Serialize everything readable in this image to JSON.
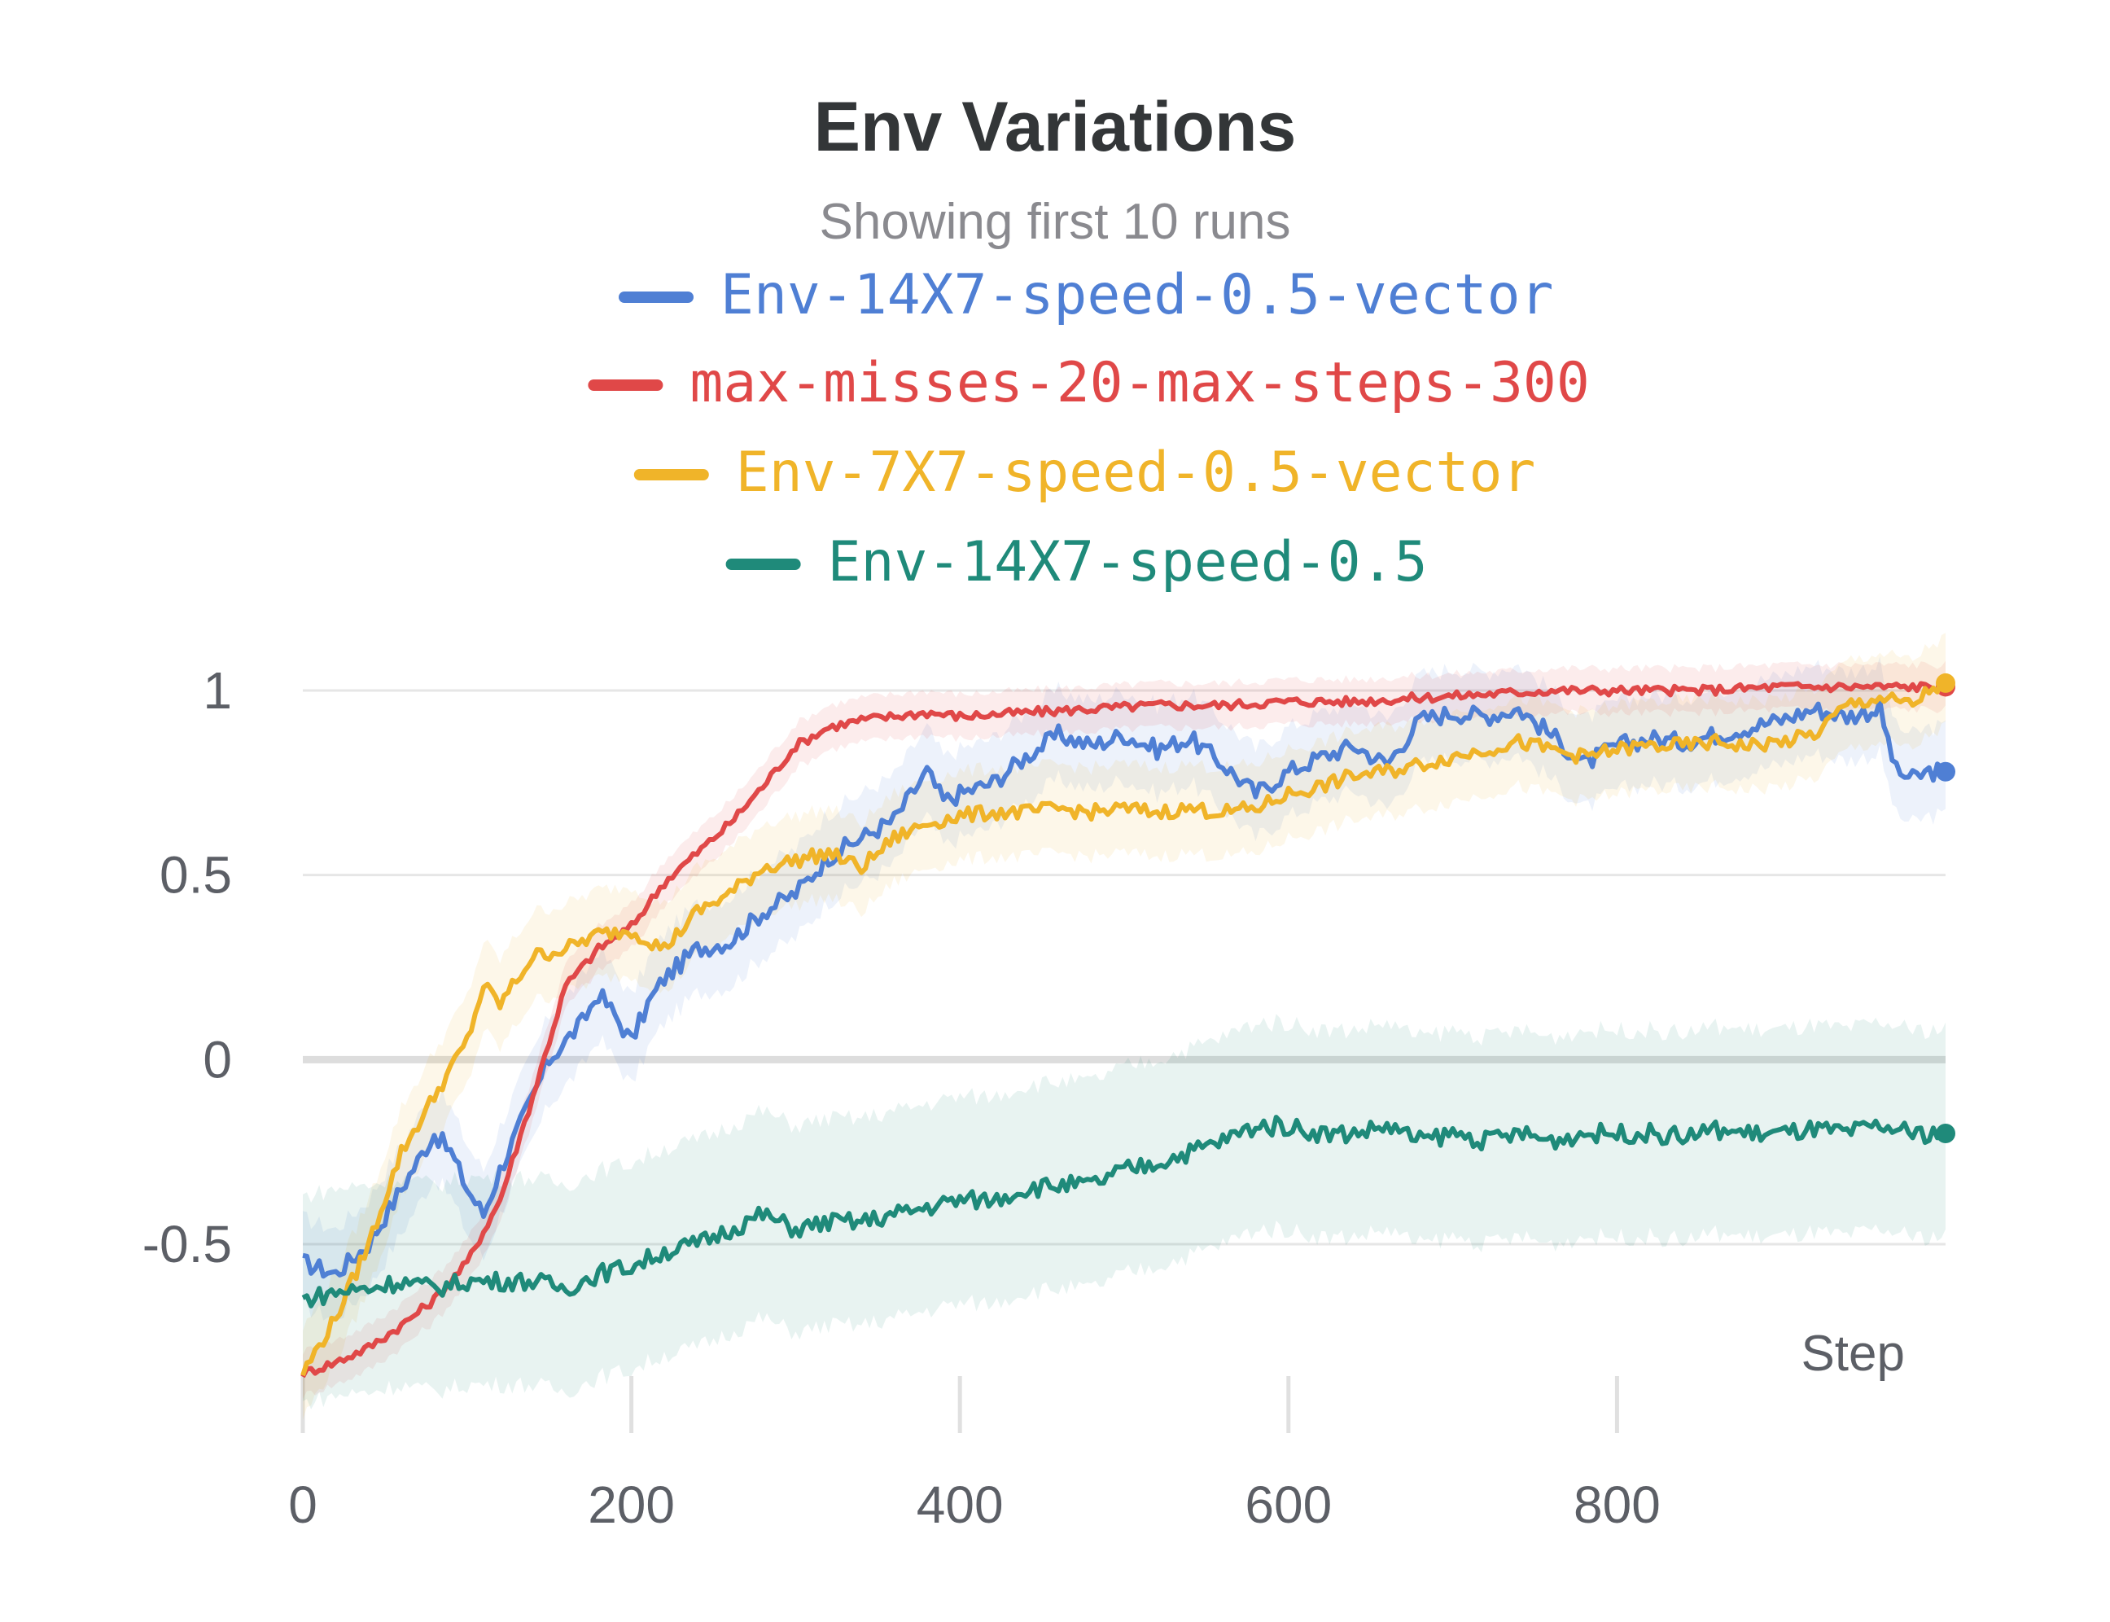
{
  "chart_data": {
    "type": "line",
    "title": "Env Variations",
    "subtitle": "Showing first 10 runs",
    "xlabel": "Step",
    "ylabel": "",
    "xlim": [
      0,
      1000
    ],
    "ylim": [
      -0.9,
      1.05
    ],
    "xticks": [
      0,
      200,
      400,
      600,
      800
    ],
    "xtick_labels": [
      "0",
      "200",
      "400",
      "600",
      "800"
    ],
    "yticks": [
      1,
      0.5,
      0,
      -0.5
    ],
    "ytick_labels": [
      "1",
      "0.5",
      "0",
      "-0.5"
    ],
    "grid": true,
    "legend_position": "top",
    "series": [
      {
        "name": "Env-14X7-speed-0.5-vector",
        "color": "#4f7fd4",
        "points": [
          [
            0,
            -0.55
          ],
          [
            20,
            -0.58
          ],
          [
            40,
            -0.5
          ],
          [
            60,
            -0.35
          ],
          [
            80,
            -0.2
          ],
          [
            90,
            -0.25
          ],
          [
            100,
            -0.35
          ],
          [
            110,
            -0.42
          ],
          [
            120,
            -0.3
          ],
          [
            130,
            -0.2
          ],
          [
            140,
            -0.1
          ],
          [
            150,
            0.0
          ],
          [
            160,
            0.05
          ],
          [
            170,
            0.1
          ],
          [
            180,
            0.18
          ],
          [
            190,
            0.12
          ],
          [
            200,
            0.05
          ],
          [
            210,
            0.15
          ],
          [
            220,
            0.22
          ],
          [
            240,
            0.3
          ],
          [
            260,
            0.32
          ],
          [
            280,
            0.4
          ],
          [
            300,
            0.45
          ],
          [
            320,
            0.55
          ],
          [
            340,
            0.6
          ],
          [
            360,
            0.65
          ],
          [
            380,
            0.78
          ],
          [
            390,
            0.7
          ],
          [
            400,
            0.72
          ],
          [
            420,
            0.75
          ],
          [
            440,
            0.82
          ],
          [
            460,
            0.88
          ],
          [
            480,
            0.85
          ],
          [
            500,
            0.88
          ],
          [
            520,
            0.84
          ],
          [
            540,
            0.87
          ],
          [
            560,
            0.8
          ],
          [
            580,
            0.72
          ],
          [
            600,
            0.78
          ],
          [
            620,
            0.82
          ],
          [
            640,
            0.85
          ],
          [
            660,
            0.8
          ],
          [
            680,
            0.92
          ],
          [
            700,
            0.94
          ],
          [
            720,
            0.93
          ],
          [
            740,
            0.95
          ],
          [
            760,
            0.88
          ],
          [
            780,
            0.8
          ],
          [
            800,
            0.85
          ],
          [
            820,
            0.87
          ],
          [
            840,
            0.86
          ],
          [
            860,
            0.88
          ],
          [
            880,
            0.9
          ],
          [
            900,
            0.92
          ],
          [
            920,
            0.95
          ],
          [
            940,
            0.93
          ],
          [
            960,
            0.95
          ],
          [
            970,
            0.78
          ],
          [
            980,
            0.76
          ],
          [
            990,
            0.78
          ],
          [
            1000,
            0.78
          ]
        ]
      },
      {
        "name": "max-misses-20-max-steps-300",
        "color": "#e04848",
        "points": [
          [
            0,
            -0.85
          ],
          [
            20,
            -0.82
          ],
          [
            40,
            -0.78
          ],
          [
            60,
            -0.72
          ],
          [
            80,
            -0.65
          ],
          [
            100,
            -0.55
          ],
          [
            120,
            -0.38
          ],
          [
            140,
            -0.1
          ],
          [
            160,
            0.2
          ],
          [
            180,
            0.3
          ],
          [
            200,
            0.36
          ],
          [
            220,
            0.48
          ],
          [
            240,
            0.56
          ],
          [
            260,
            0.64
          ],
          [
            280,
            0.74
          ],
          [
            300,
            0.85
          ],
          [
            320,
            0.9
          ],
          [
            340,
            0.92
          ],
          [
            360,
            0.93
          ],
          [
            380,
            0.94
          ],
          [
            400,
            0.93
          ],
          [
            440,
            0.94
          ],
          [
            480,
            0.95
          ],
          [
            520,
            0.96
          ],
          [
            560,
            0.96
          ],
          [
            600,
            0.97
          ],
          [
            640,
            0.97
          ],
          [
            680,
            0.98
          ],
          [
            720,
            0.99
          ],
          [
            760,
            1.0
          ],
          [
            800,
            1.0
          ],
          [
            850,
            1.0
          ],
          [
            900,
            1.01
          ],
          [
            950,
            1.01
          ],
          [
            1000,
            1.01
          ]
        ]
      },
      {
        "name": "Env-7X7-speed-0.5-vector",
        "color": "#f0b429",
        "points": [
          [
            0,
            -0.85
          ],
          [
            20,
            -0.7
          ],
          [
            40,
            -0.5
          ],
          [
            60,
            -0.25
          ],
          [
            80,
            -0.1
          ],
          [
            100,
            0.05
          ],
          [
            110,
            0.2
          ],
          [
            120,
            0.15
          ],
          [
            140,
            0.28
          ],
          [
            160,
            0.3
          ],
          [
            180,
            0.34
          ],
          [
            200,
            0.35
          ],
          [
            220,
            0.3
          ],
          [
            240,
            0.4
          ],
          [
            260,
            0.45
          ],
          [
            280,
            0.52
          ],
          [
            300,
            0.54
          ],
          [
            320,
            0.56
          ],
          [
            340,
            0.52
          ],
          [
            360,
            0.6
          ],
          [
            380,
            0.64
          ],
          [
            400,
            0.66
          ],
          [
            420,
            0.67
          ],
          [
            440,
            0.67
          ],
          [
            460,
            0.68
          ],
          [
            480,
            0.67
          ],
          [
            500,
            0.68
          ],
          [
            520,
            0.67
          ],
          [
            540,
            0.68
          ],
          [
            560,
            0.67
          ],
          [
            580,
            0.68
          ],
          [
            600,
            0.72
          ],
          [
            620,
            0.74
          ],
          [
            640,
            0.77
          ],
          [
            660,
            0.78
          ],
          [
            680,
            0.8
          ],
          [
            700,
            0.82
          ],
          [
            720,
            0.84
          ],
          [
            740,
            0.86
          ],
          [
            760,
            0.84
          ],
          [
            780,
            0.82
          ],
          [
            800,
            0.84
          ],
          [
            820,
            0.85
          ],
          [
            840,
            0.85
          ],
          [
            860,
            0.86
          ],
          [
            880,
            0.85
          ],
          [
            900,
            0.86
          ],
          [
            920,
            0.88
          ],
          [
            940,
            0.96
          ],
          [
            960,
            0.98
          ],
          [
            980,
            0.96
          ],
          [
            990,
            1.0
          ],
          [
            1000,
            1.02
          ]
        ]
      },
      {
        "name": "Env-14X7-speed-0.5",
        "color": "#1f8a7a",
        "points": [
          [
            0,
            -0.65
          ],
          [
            20,
            -0.63
          ],
          [
            40,
            -0.62
          ],
          [
            60,
            -0.6
          ],
          [
            80,
            -0.62
          ],
          [
            100,
            -0.6
          ],
          [
            120,
            -0.6
          ],
          [
            140,
            -0.6
          ],
          [
            160,
            -0.62
          ],
          [
            180,
            -0.58
          ],
          [
            200,
            -0.56
          ],
          [
            220,
            -0.52
          ],
          [
            240,
            -0.5
          ],
          [
            260,
            -0.46
          ],
          [
            280,
            -0.42
          ],
          [
            300,
            -0.46
          ],
          [
            320,
            -0.44
          ],
          [
            340,
            -0.44
          ],
          [
            360,
            -0.42
          ],
          [
            380,
            -0.4
          ],
          [
            400,
            -0.38
          ],
          [
            420,
            -0.38
          ],
          [
            440,
            -0.35
          ],
          [
            460,
            -0.34
          ],
          [
            480,
            -0.34
          ],
          [
            500,
            -0.3
          ],
          [
            520,
            -0.28
          ],
          [
            540,
            -0.25
          ],
          [
            560,
            -0.22
          ],
          [
            580,
            -0.18
          ],
          [
            600,
            -0.18
          ],
          [
            620,
            -0.2
          ],
          [
            640,
            -0.2
          ],
          [
            660,
            -0.18
          ],
          [
            680,
            -0.22
          ],
          [
            700,
            -0.2
          ],
          [
            720,
            -0.22
          ],
          [
            740,
            -0.2
          ],
          [
            760,
            -0.22
          ],
          [
            780,
            -0.2
          ],
          [
            800,
            -0.2
          ],
          [
            820,
            -0.2
          ],
          [
            840,
            -0.21
          ],
          [
            860,
            -0.19
          ],
          [
            880,
            -0.2
          ],
          [
            900,
            -0.2
          ],
          [
            920,
            -0.19
          ],
          [
            940,
            -0.2
          ],
          [
            960,
            -0.18
          ],
          [
            980,
            -0.2
          ],
          [
            1000,
            -0.2
          ]
        ]
      },
      {
        "name": "Env-14X7-speed-0.5",
        "color": "#1f8a7a",
        "points": [
          [
            0,
            -0.65
          ],
          [
            20,
            -0.63
          ],
          [
            40,
            -0.62
          ],
          [
            60,
            -0.6
          ],
          [
            80,
            -0.62
          ],
          [
            100,
            -0.6
          ],
          [
            120,
            -0.6
          ],
          [
            140,
            -0.6
          ],
          [
            160,
            -0.62
          ],
          [
            180,
            -0.58
          ],
          [
            200,
            -0.56
          ],
          [
            220,
            -0.52
          ],
          [
            240,
            -0.5
          ],
          [
            260,
            -0.46
          ],
          [
            280,
            -0.42
          ],
          [
            300,
            -0.46
          ],
          [
            320,
            -0.44
          ],
          [
            340,
            -0.44
          ],
          [
            360,
            -0.42
          ],
          [
            380,
            -0.4
          ],
          [
            400,
            -0.38
          ],
          [
            420,
            -0.38
          ],
          [
            440,
            -0.35
          ],
          [
            460,
            -0.34
          ],
          [
            480,
            -0.34
          ],
          [
            500,
            -0.3
          ],
          [
            520,
            -0.28
          ],
          [
            540,
            -0.25
          ],
          [
            560,
            -0.22
          ],
          [
            580,
            -0.18
          ],
          [
            600,
            -0.18
          ],
          [
            620,
            -0.2
          ],
          [
            640,
            -0.2
          ],
          [
            660,
            -0.18
          ],
          [
            680,
            -0.22
          ],
          [
            700,
            -0.2
          ],
          [
            720,
            -0.22
          ],
          [
            740,
            -0.2
          ],
          [
            760,
            -0.22
          ],
          [
            780,
            -0.2
          ],
          [
            800,
            -0.2
          ],
          [
            820,
            -0.2
          ],
          [
            840,
            -0.21
          ],
          [
            860,
            -0.19
          ],
          [
            880,
            -0.2
          ],
          [
            900,
            -0.2
          ],
          [
            920,
            -0.19
          ],
          [
            940,
            -0.2
          ],
          [
            960,
            -0.18
          ],
          [
            980,
            -0.2
          ],
          [
            1000,
            -0.2
          ]
        ]
      }
    ]
  }
}
